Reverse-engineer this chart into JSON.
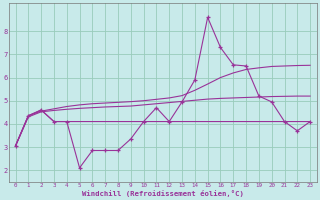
{
  "background_color": "#c8eaea",
  "grid_color": "#99ccbb",
  "line_color": "#993399",
  "xlabel": "Windchill (Refroidissement éolien,°C)",
  "xlim": [
    -0.5,
    23.5
  ],
  "ylim": [
    1.5,
    9.2
  ],
  "xticks": [
    0,
    1,
    2,
    3,
    4,
    5,
    6,
    7,
    8,
    9,
    10,
    11,
    12,
    13,
    14,
    15,
    16,
    17,
    18,
    19,
    20,
    21,
    22,
    23
  ],
  "yticks": [
    2,
    3,
    4,
    5,
    6,
    7,
    8
  ],
  "series1_x": [
    0,
    1,
    2,
    3,
    4,
    5,
    6,
    7,
    8,
    9,
    10,
    11,
    12,
    13,
    14,
    15,
    16,
    17,
    18,
    19,
    20,
    21,
    22,
    23
  ],
  "series1_y": [
    3.05,
    4.35,
    4.6,
    4.1,
    4.1,
    2.1,
    2.85,
    2.85,
    2.85,
    3.35,
    4.1,
    4.7,
    4.1,
    4.95,
    5.9,
    8.6,
    7.3,
    6.55,
    6.5,
    5.2,
    4.95,
    4.1,
    3.7,
    4.1
  ],
  "series2_x": [
    0,
    1,
    2,
    3,
    4,
    5,
    6,
    7,
    8,
    9,
    10,
    11,
    12,
    13,
    14,
    15,
    16,
    17,
    18,
    19,
    20,
    21,
    22,
    23
  ],
  "series2_y": [
    3.05,
    4.35,
    4.6,
    4.1,
    4.1,
    4.1,
    4.1,
    4.1,
    4.1,
    4.1,
    4.1,
    4.1,
    4.1,
    4.1,
    4.1,
    4.1,
    4.1,
    4.1,
    4.1,
    4.1,
    4.1,
    4.1,
    4.1,
    4.1
  ],
  "series3_x": [
    0,
    1,
    2,
    3,
    4,
    5,
    6,
    7,
    8,
    9,
    10,
    11,
    12,
    13,
    14,
    15,
    16,
    17,
    18,
    19,
    20,
    21,
    22,
    23
  ],
  "series3_y": [
    3.05,
    4.35,
    4.55,
    4.65,
    4.75,
    4.82,
    4.87,
    4.9,
    4.93,
    4.96,
    5.0,
    5.06,
    5.12,
    5.22,
    5.45,
    5.72,
    6.0,
    6.2,
    6.35,
    6.42,
    6.48,
    6.5,
    6.52,
    6.53
  ],
  "series4_x": [
    0,
    1,
    2,
    3,
    4,
    5,
    6,
    7,
    8,
    9,
    10,
    11,
    12,
    13,
    14,
    15,
    16,
    17,
    18,
    19,
    20,
    21,
    22,
    23
  ],
  "series4_y": [
    3.05,
    4.3,
    4.52,
    4.58,
    4.63,
    4.67,
    4.7,
    4.73,
    4.75,
    4.77,
    4.82,
    4.87,
    4.92,
    4.97,
    5.02,
    5.07,
    5.1,
    5.12,
    5.14,
    5.16,
    5.18,
    5.19,
    5.2,
    5.2
  ]
}
